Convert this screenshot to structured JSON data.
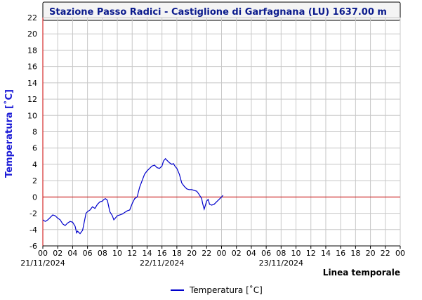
{
  "chart_data": {
    "type": "line",
    "title": "Stazione Passo Radici - Castiglione di Garfagnana (LU) 1637.00 m",
    "ylabel": "Temperatura [˚C]",
    "xlabel": "Linea temporale",
    "ylim": [
      -6,
      22
    ],
    "yticks": [
      -6,
      -4,
      -2,
      0,
      2,
      4,
      6,
      8,
      10,
      12,
      14,
      16,
      18,
      20,
      22
    ],
    "xlim": [
      0,
      72
    ],
    "x_unit": "hours since 21/11/2024 00:00",
    "xtick_labels": [
      "00",
      "02",
      "04",
      "06",
      "08",
      "10",
      "12",
      "14",
      "16",
      "18",
      "20",
      "22",
      "00",
      "02",
      "04",
      "06",
      "08",
      "10",
      "12",
      "14",
      "16",
      "18",
      "20",
      "22",
      "00"
    ],
    "date_labels": [
      {
        "x": 0,
        "text": "21/11/2024"
      },
      {
        "x": 24,
        "text": "22/11/2024"
      },
      {
        "x": 48,
        "text": "23/11/2024"
      }
    ],
    "reference_line": {
      "y": 0,
      "color": "#cc0000"
    },
    "grid": true,
    "legend_position": "bottom-center",
    "colors": {
      "series": "#0000cc",
      "zero_line": "#cc0000",
      "title": "#0a1a8c",
      "ylabel": "#1a1ad6",
      "title_bg": "#f4f4f4"
    },
    "series": [
      {
        "name": "Temperatura [˚C]",
        "x": [
          0,
          0.5,
          1,
          1.5,
          2,
          2.5,
          3,
          3.5,
          4,
          4.5,
          5,
          5.5,
          6,
          6.5,
          6.8,
          7,
          7.5,
          8,
          8.3,
          8.7,
          9,
          9.5,
          10,
          10.5,
          11,
          11.5,
          12,
          12.3,
          12.6,
          13,
          13.5,
          14,
          14.3,
          14.6,
          15,
          15.5,
          16,
          16.5,
          17,
          17.5,
          18,
          18.5,
          19,
          19.5,
          20,
          20.5,
          21,
          21.5,
          22,
          22.5,
          23,
          23.5,
          24,
          24.3,
          24.7,
          25,
          25.5,
          26,
          26.3,
          26.7,
          27,
          27.5,
          28,
          28.5,
          29,
          29.5,
          30,
          30.5,
          31,
          31.5,
          32,
          32.2,
          32.5,
          32.8,
          33,
          33.3,
          33.6,
          34,
          34.5,
          35,
          35.5,
          36,
          36.3
        ],
        "y": [
          -2.8,
          -3.0,
          -2.8,
          -2.5,
          -2.2,
          -2.3,
          -2.6,
          -2.8,
          -3.3,
          -3.5,
          -3.2,
          -3.0,
          -3.1,
          -3.6,
          -4.4,
          -4.2,
          -4.5,
          -4.1,
          -3.2,
          -2.0,
          -1.8,
          -1.6,
          -1.2,
          -1.4,
          -0.9,
          -0.6,
          -0.5,
          -0.3,
          -0.2,
          -0.4,
          -1.8,
          -2.3,
          -2.8,
          -2.6,
          -2.3,
          -2.2,
          -2.1,
          -1.9,
          -1.7,
          -1.6,
          -0.8,
          -0.2,
          0.0,
          1.2,
          2.0,
          2.8,
          3.2,
          3.5,
          3.8,
          3.9,
          3.6,
          3.5,
          3.8,
          4.4,
          4.7,
          4.5,
          4.2,
          4.0,
          4.1,
          3.7,
          3.5,
          2.8,
          1.7,
          1.3,
          1.0,
          0.9,
          0.9,
          0.8,
          0.7,
          0.3,
          -0.2,
          -0.8,
          -1.5,
          -0.9,
          -0.5,
          -0.3,
          -0.9,
          -1.0,
          -0.9,
          -0.6,
          -0.3,
          0.0,
          0.2
        ]
      }
    ]
  }
}
